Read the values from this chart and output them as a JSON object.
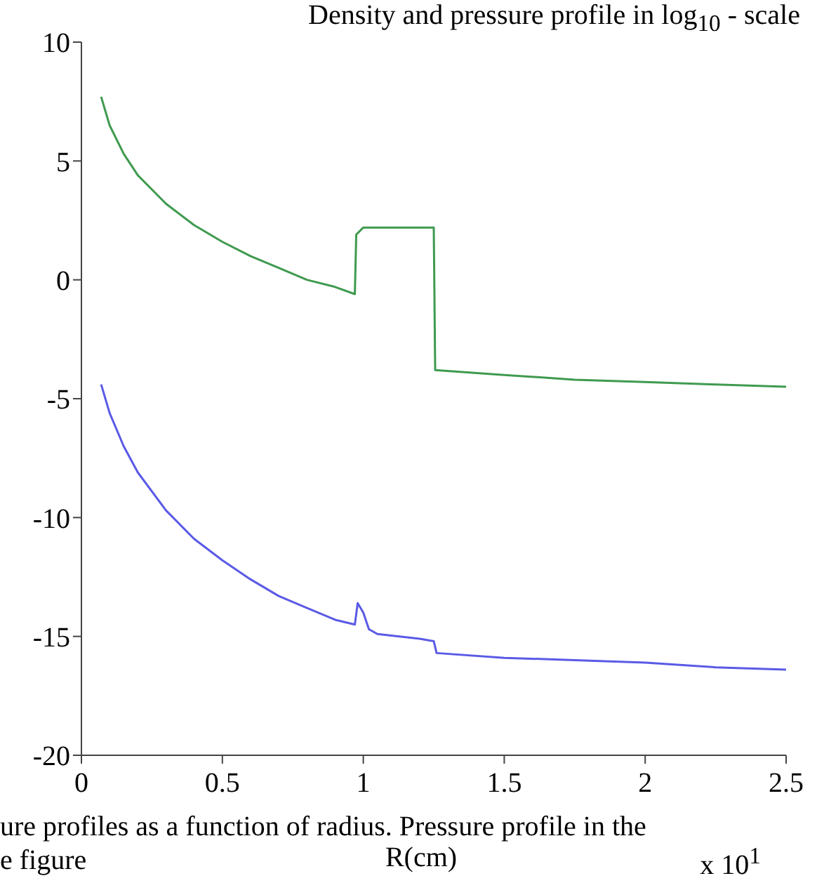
{
  "chart_data": {
    "type": "line",
    "title": "Density and pressure profile in log$_{10}$ - scale",
    "xlabel": "R(cm)",
    "annotations": [
      "ure profiles as a function of radius. Pressure profile in the",
      "e figure",
      "x 10$^{1}$"
    ],
    "xlim": [
      0,
      2.5
    ],
    "xticks": [
      0,
      0.5,
      1,
      1.5,
      2,
      2.5
    ],
    "ylim": [
      -20,
      10
    ],
    "yticks": [
      -20,
      -15,
      -10,
      -5,
      0,
      5,
      10
    ],
    "grid": false,
    "legend": false,
    "marker": "none",
    "line_style": "solid",
    "series": [
      {
        "color": "#3f9a4f",
        "x": [
          0.07,
          0.1,
          0.15,
          0.2,
          0.3,
          0.4,
          0.5,
          0.6,
          0.7,
          0.8,
          0.9,
          0.97,
          0.975,
          1.0,
          1.25,
          1.255,
          1.5,
          1.75,
          2.0,
          2.25,
          2.5
        ],
        "values": [
          7.7,
          6.5,
          5.3,
          4.4,
          3.2,
          2.3,
          1.6,
          1.0,
          0.5,
          0.0,
          -0.3,
          -0.6,
          1.9,
          2.2,
          2.2,
          -3.8,
          -4.0,
          -4.2,
          -4.3,
          -4.4,
          -4.5
        ]
      },
      {
        "color": "#5a5ae6",
        "x": [
          0.07,
          0.1,
          0.15,
          0.2,
          0.3,
          0.4,
          0.5,
          0.6,
          0.7,
          0.8,
          0.9,
          0.97,
          0.98,
          1.0,
          1.02,
          1.05,
          1.2,
          1.25,
          1.26,
          1.5,
          1.75,
          2.0,
          2.25,
          2.5
        ],
        "values": [
          -4.4,
          -5.6,
          -7.0,
          -8.1,
          -9.7,
          -10.9,
          -11.8,
          -12.6,
          -13.3,
          -13.8,
          -14.3,
          -14.5,
          -13.6,
          -14.0,
          -14.7,
          -14.9,
          -15.1,
          -15.2,
          -15.7,
          -15.9,
          -16.0,
          -16.1,
          -16.3,
          -16.4
        ]
      }
    ]
  }
}
